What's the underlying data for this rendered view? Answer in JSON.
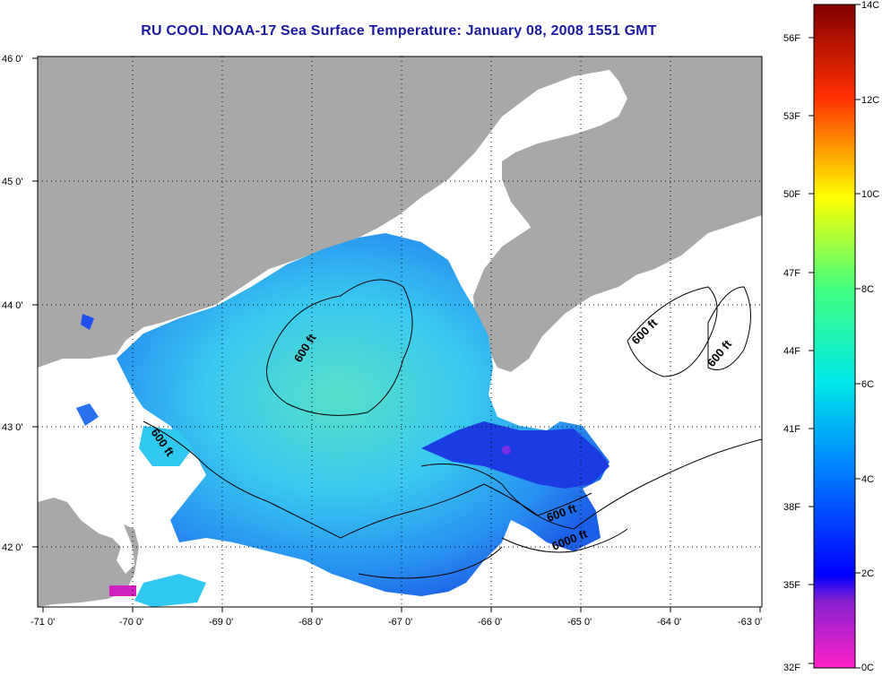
{
  "title": "RU COOL  NOAA-17  Sea Surface Temperature:  January 08, 2008 1551 GMT",
  "longitude_ticks": [
    "-71 0'",
    "-70 0'",
    "-69 0'",
    "-68 0'",
    "-67 0'",
    "-66 0'",
    "-65 0'",
    "-64 0'",
    "-63 0'"
  ],
  "latitude_ticks": [
    "46 0'",
    "45 0'",
    "44 0'",
    "43 0'",
    "42 0'"
  ],
  "contour_labels": [
    "600 ft",
    "600 ft",
    "600 ft",
    "600 ft",
    "600 ft",
    "6000 ft"
  ],
  "colorbar": {
    "fahrenheit": [
      "56F",
      "53F",
      "50F",
      "47F",
      "44F",
      "41F",
      "38F",
      "35F",
      "32F"
    ],
    "celsius": [
      "14C",
      "12C",
      "10C",
      "8C",
      "6C",
      "4C",
      "2C",
      "0C"
    ]
  },
  "colors": {
    "land": "#a8a8a8",
    "title": "#1a1aa0",
    "water_mid": "#38d8f0",
    "water_cold": "#1848e8"
  }
}
